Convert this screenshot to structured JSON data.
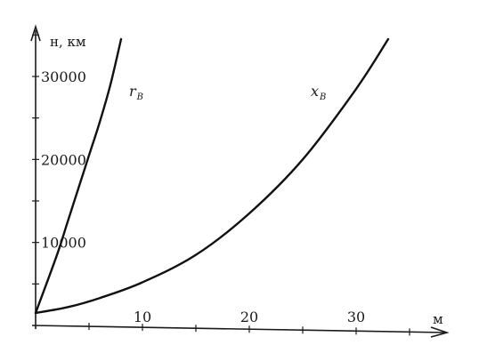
{
  "chart_data": {
    "type": "line",
    "title": "",
    "xlabel": "м",
    "ylabel": "н, км",
    "xlim": [
      0,
      36
    ],
    "ylim": [
      0,
      36000
    ],
    "x_ticks": [
      10,
      20,
      30
    ],
    "y_ticks": [
      10000,
      20000,
      30000
    ],
    "grid": false,
    "legend": "none",
    "series": [
      {
        "name": "r_B",
        "label_main": "r",
        "label_sub": "B",
        "x": [
          0,
          2,
          3,
          4,
          5,
          6,
          7,
          8
        ],
        "y": [
          1500,
          8500,
          12500,
          16500,
          20500,
          24500,
          29000,
          34500
        ]
      },
      {
        "name": "x_B",
        "label_main": "x",
        "label_sub": "B",
        "x": [
          0,
          3,
          6,
          10,
          15,
          20,
          25,
          30,
          33
        ],
        "y": [
          1500,
          2200,
          3300,
          5200,
          8500,
          13500,
          20000,
          28500,
          34500
        ]
      }
    ]
  }
}
